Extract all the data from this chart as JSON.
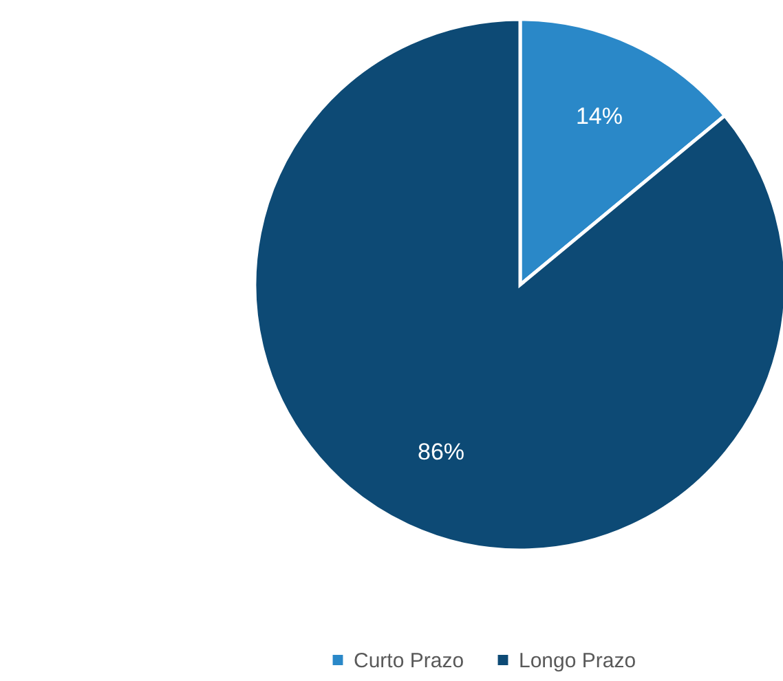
{
  "chart_data": {
    "type": "pie",
    "categories": [
      "Curto Prazo",
      "Longo Prazo"
    ],
    "values": [
      14,
      86
    ],
    "value_labels": [
      "14%",
      "86%"
    ],
    "colors": [
      "#2a88c8",
      "#0d4a75"
    ],
    "legend": "bottom"
  }
}
